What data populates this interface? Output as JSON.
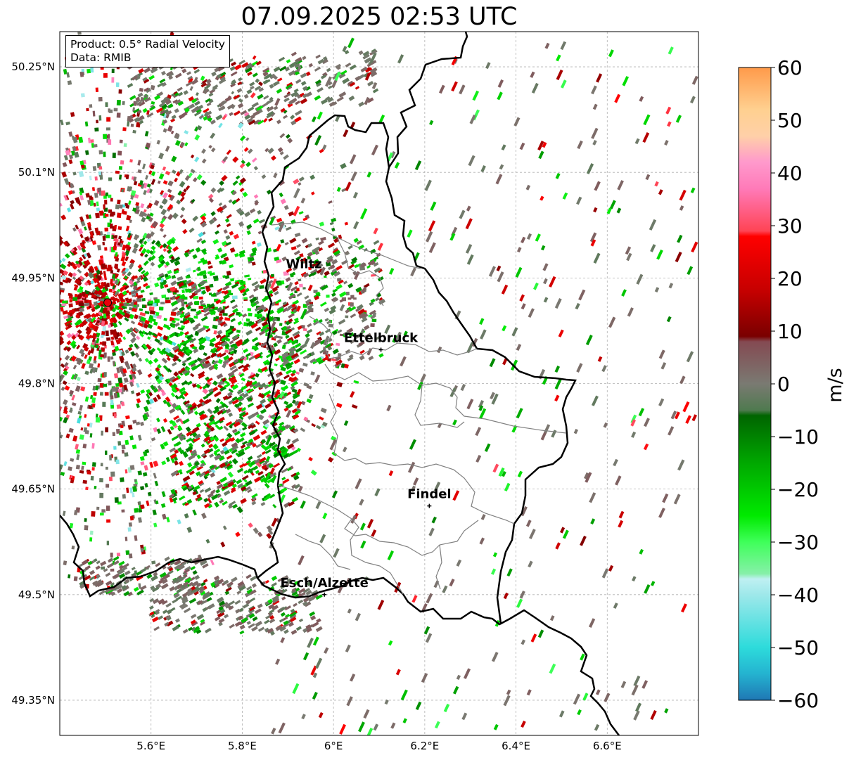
{
  "title": "07.09.2025 02:53 UTC",
  "info": {
    "product": "Product: 0.5° Radial Velocity",
    "source": "Data: RMIB"
  },
  "lat_ticks": [
    {
      "value": 50.25,
      "label": "50.25°N"
    },
    {
      "value": 50.1,
      "label": "50.1°N"
    },
    {
      "value": 49.95,
      "label": "49.95°N"
    },
    {
      "value": 49.8,
      "label": "49.8°N"
    },
    {
      "value": 49.65,
      "label": "49.65°N"
    },
    {
      "value": 49.5,
      "label": "49.5°N"
    },
    {
      "value": 49.35,
      "label": "49.35°N"
    }
  ],
  "lon_ticks": [
    {
      "value": 5.6,
      "label": "5.6°E"
    },
    {
      "value": 5.8,
      "label": "5.8°E"
    },
    {
      "value": 6.0,
      "label": "6°E"
    },
    {
      "value": 6.2,
      "label": "6.2°E"
    },
    {
      "value": 6.4,
      "label": "6.4°E"
    },
    {
      "value": 6.6,
      "label": "6.6°E"
    }
  ],
  "extent": {
    "lon_min": 5.4,
    "lon_max": 6.8,
    "lat_min": 49.3,
    "lat_max": 50.3
  },
  "radar_site": {
    "lon": 5.505,
    "lat": 49.915,
    "color": "#e8000b"
  },
  "cities": [
    {
      "name": "Wiltz",
      "lon": 5.935,
      "lat": 49.966,
      "marker": false
    },
    {
      "name": "Ettelbruck",
      "lon": 6.104,
      "lat": 49.848,
      "marker": true
    },
    {
      "name": "Findel",
      "lon": 6.21,
      "lat": 49.626,
      "marker": true
    },
    {
      "name": "Esch/Alzette",
      "lon": 5.98,
      "lat": 49.5,
      "marker": true
    }
  ],
  "colorbar": {
    "label": "m/s",
    "min": -60,
    "max": 60,
    "ticks": [
      60,
      50,
      40,
      30,
      20,
      10,
      0,
      -10,
      -20,
      -30,
      -40,
      -50,
      -60
    ],
    "tick_labels": [
      "60",
      "50",
      "40",
      "30",
      "20",
      "10",
      "0",
      "−10",
      "−20",
      "−30",
      "−40",
      "−50",
      "−60"
    ],
    "stops": [
      {
        "value": -60,
        "color": "#1f77b4"
      },
      {
        "value": -55,
        "color": "#24b3d0"
      },
      {
        "value": -50,
        "color": "#2ddbdb"
      },
      {
        "value": -40,
        "color": "#9ee8ea"
      },
      {
        "value": -37,
        "color": "#bff0f2"
      },
      {
        "value": -36,
        "color": "#86f0a8"
      },
      {
        "value": -30,
        "color": "#3fff5a"
      },
      {
        "value": -25,
        "color": "#00ea00"
      },
      {
        "value": -15,
        "color": "#00a800"
      },
      {
        "value": -6,
        "color": "#006400"
      },
      {
        "value": -5,
        "color": "#4f7a4f"
      },
      {
        "value": 0,
        "color": "#7a7a72"
      },
      {
        "value": 8,
        "color": "#844a52"
      },
      {
        "value": 9,
        "color": "#7a0000"
      },
      {
        "value": 18,
        "color": "#c80000"
      },
      {
        "value": 28,
        "color": "#ff0000"
      },
      {
        "value": 29,
        "color": "#ff4455"
      },
      {
        "value": 37,
        "color": "#ff7ab8"
      },
      {
        "value": 42,
        "color": "#ff99cc"
      },
      {
        "value": 47,
        "color": "#ffd0a8"
      },
      {
        "value": 52,
        "color": "#ffd090"
      },
      {
        "value": 60,
        "color": "#ff9a4a"
      }
    ]
  }
}
